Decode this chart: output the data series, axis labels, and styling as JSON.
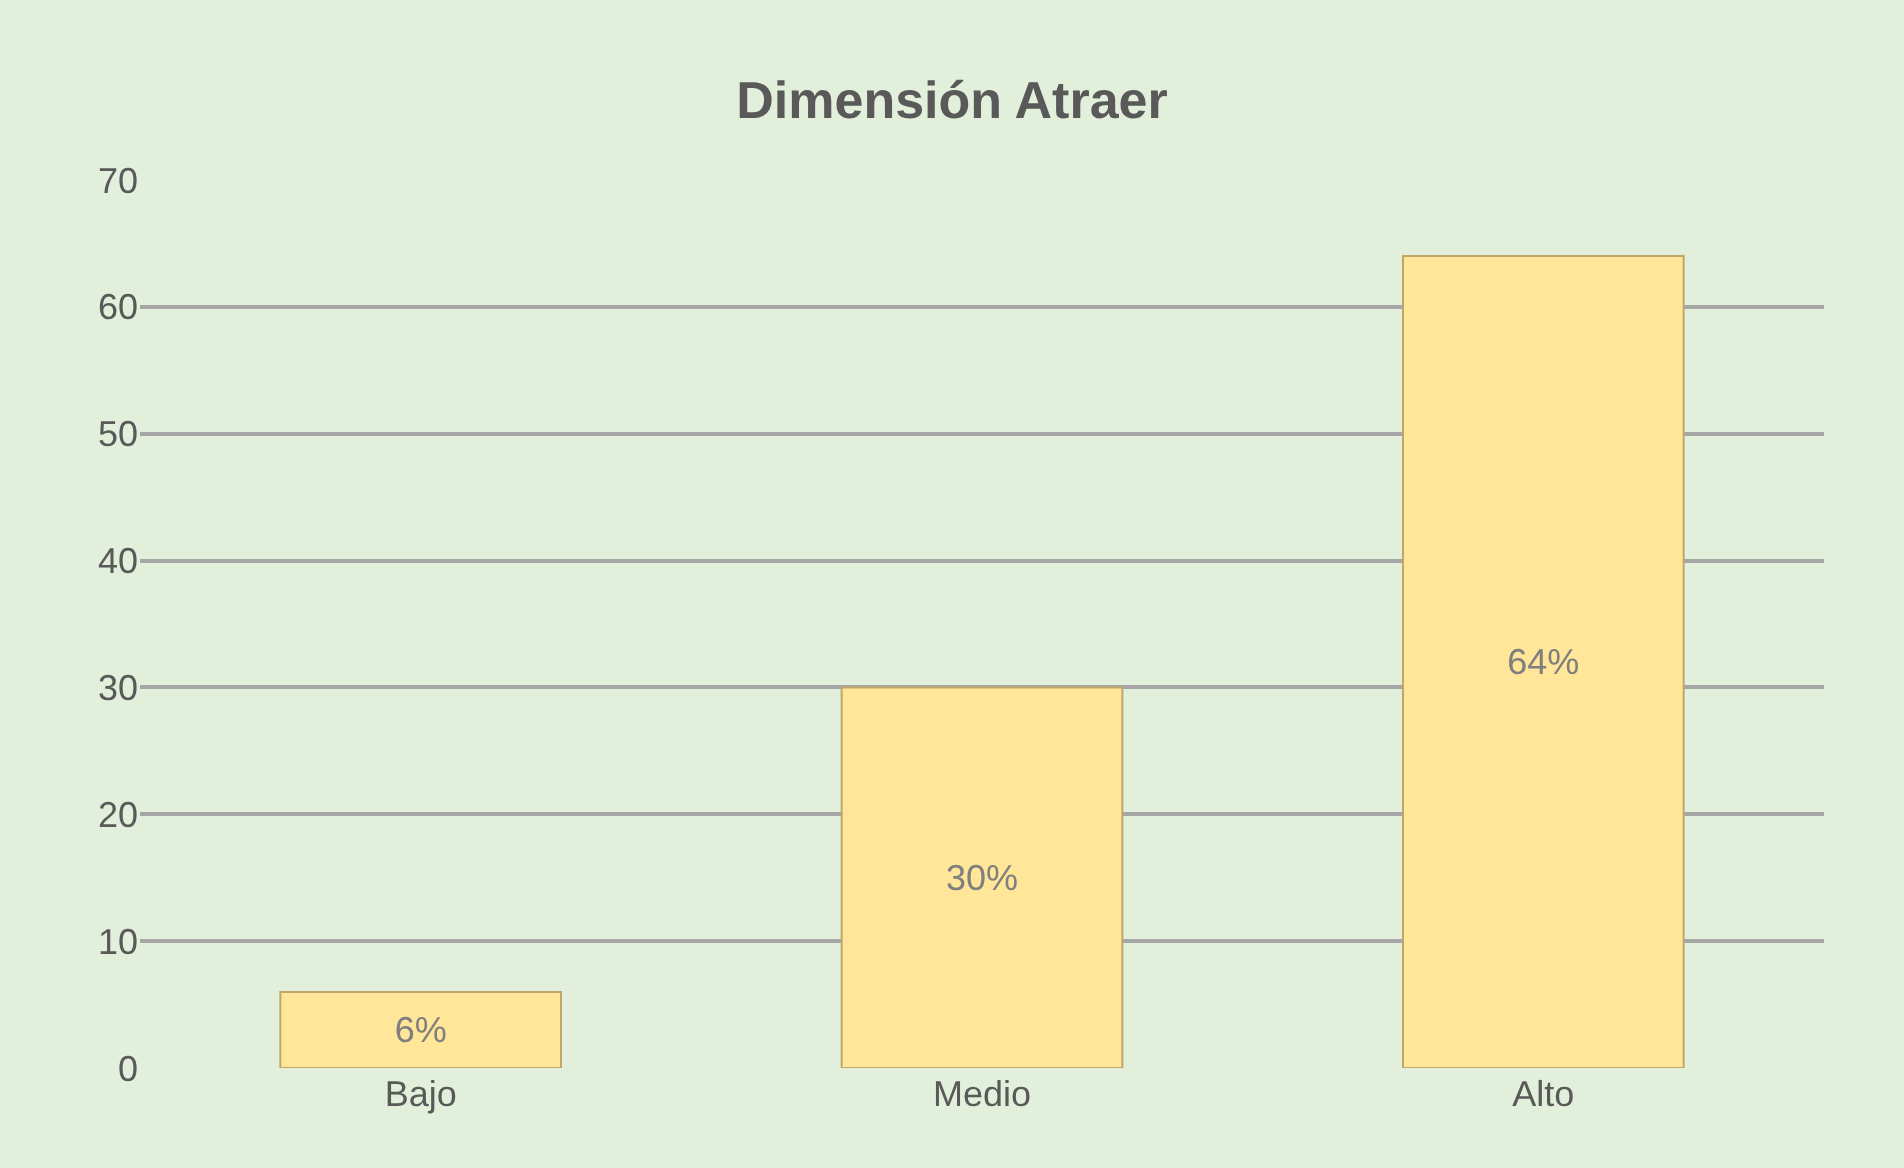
{
  "chart_data": {
    "type": "bar",
    "title": "Dimensión Atraer",
    "categories": [
      "Bajo",
      "Medio",
      "Alto"
    ],
    "values": [
      6,
      30,
      64
    ],
    "value_labels": [
      "6%",
      "30%",
      "64%"
    ],
    "color": "#ffe699",
    "ylim": [
      0,
      70
    ],
    "yticks": [
      0,
      10,
      20,
      30,
      40,
      50,
      60,
      70
    ],
    "grid": "y"
  }
}
